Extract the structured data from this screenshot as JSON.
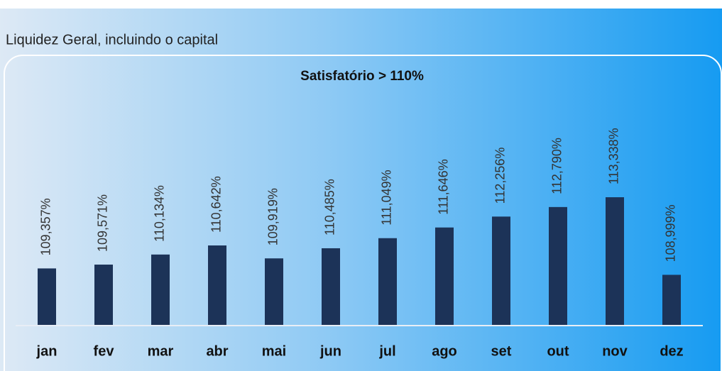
{
  "chart_data": {
    "type": "bar",
    "title": "Liquidez Geral, incluindo o capital",
    "subtitle": "Satisfatório > 110%",
    "categories": [
      "jan",
      "fev",
      "mar",
      "abr",
      "mai",
      "jun",
      "jul",
      "ago",
      "set",
      "out",
      "nov",
      "dez"
    ],
    "values": [
      109.357,
      109.571,
      110.134,
      110.642,
      109.919,
      110.485,
      111.049,
      111.646,
      112.256,
      112.79,
      113.338,
      108.999
    ],
    "value_labels": [
      "109,357%",
      "109,571%",
      "110,134%",
      "110,642%",
      "109,919%",
      "110,485%",
      "111,049%",
      "111,646%",
      "112,256%",
      "112,790%",
      "113,338%",
      "108,999%"
    ],
    "color": "#1c3358",
    "ylim": [
      106.2,
      120.4
    ]
  }
}
